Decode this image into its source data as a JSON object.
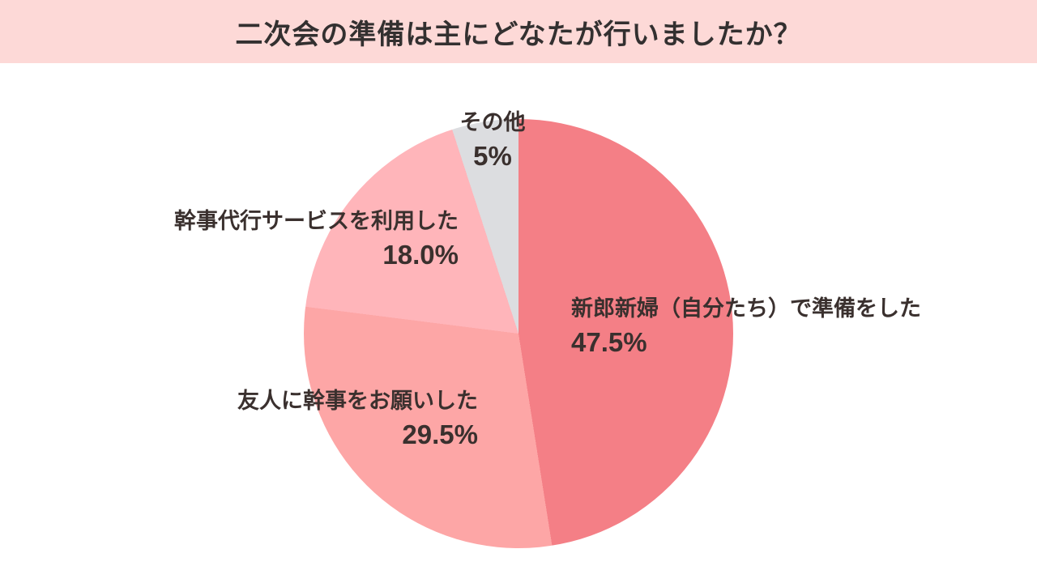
{
  "header": {
    "title": "二次会の準備は主にどなたが行いましたか？",
    "background": "#fdd9d7"
  },
  "chart_data": {
    "type": "pie",
    "title": "二次会の準備は主にどなたが行いましたか？",
    "start_angle_deg": 0,
    "direction": "clockwise",
    "legend_position": "none",
    "segments": [
      {
        "label": "新郎新婦（自分たち）で準備をした",
        "value": 47.5,
        "display_value": "47.5%",
        "color": "#f47f86"
      },
      {
        "label": "友人に幹事をお願いした",
        "value": 29.5,
        "display_value": "29.5%",
        "color": "#fda6a6"
      },
      {
        "label": "幹事代行サービスを利用した",
        "value": 18.0,
        "display_value": "18.0%",
        "color": "#ffb5ba"
      },
      {
        "label": "その他",
        "value": 5.0,
        "display_value": "5%",
        "color": "#dcdde0"
      }
    ],
    "text_color": "#3a302e"
  }
}
